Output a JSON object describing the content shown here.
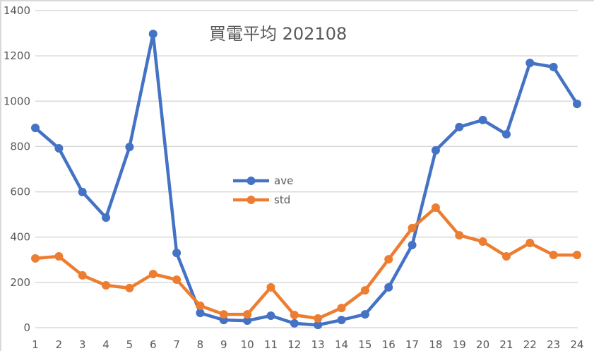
{
  "chart_data": {
    "type": "line",
    "title": "買電平均 202108",
    "xlabel": "",
    "ylabel": "",
    "categories": [
      "1",
      "2",
      "3",
      "4",
      "5",
      "6",
      "7",
      "8",
      "9",
      "10",
      "11",
      "12",
      "13",
      "14",
      "15",
      "16",
      "17",
      "18",
      "19",
      "20",
      "21",
      "22",
      "23",
      "24"
    ],
    "series": [
      {
        "name": "ave",
        "color": "#4472C4",
        "values": [
          882,
          792,
          599,
          486,
          798,
          1297,
          330,
          65,
          34,
          31,
          53,
          19,
          12,
          34,
          59,
          178,
          365,
          783,
          886,
          917,
          854,
          1169,
          1151,
          988
        ]
      },
      {
        "name": "std",
        "color": "#ED7D31",
        "values": [
          306,
          315,
          231,
          187,
          175,
          237,
          212,
          97,
          59,
          59,
          178,
          56,
          41,
          87,
          165,
          302,
          440,
          530,
          408,
          380,
          315,
          374,
          321,
          321
        ]
      }
    ],
    "ylim": [
      0,
      1400
    ],
    "yticks": [
      0,
      200,
      400,
      600,
      800,
      1000,
      1200,
      1400
    ],
    "grid": true,
    "legend_position": "inside-center"
  }
}
